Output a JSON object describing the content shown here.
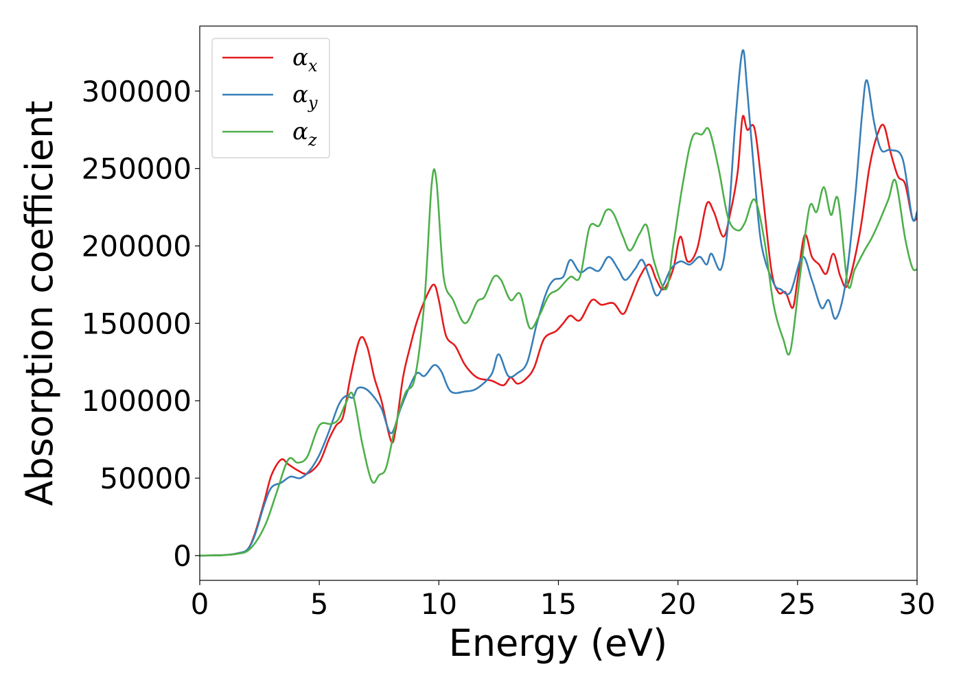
{
  "chart_data": {
    "type": "line",
    "title": "",
    "xlabel": "Energy (eV)",
    "ylabel": "Absorption coefficient",
    "xlim": [
      0,
      30
    ],
    "ylim": [
      -16000,
      342000
    ],
    "xticks": [
      0,
      5,
      10,
      15,
      20,
      25,
      30
    ],
    "xtick_labels": [
      "0",
      "5",
      "10",
      "15",
      "20",
      "25",
      "30"
    ],
    "yticks": [
      0,
      50000,
      100000,
      150000,
      200000,
      250000,
      300000
    ],
    "ytick_labels": [
      "0",
      "50000",
      "100000",
      "150000",
      "200000",
      "250000",
      "300000"
    ],
    "grid": false,
    "legend_position": "top-left",
    "series": [
      {
        "name": "αx",
        "symbol": "α",
        "subscript": "x",
        "color": "#e41a1c",
        "points": [
          [
            0,
            0
          ],
          [
            1,
            300
          ],
          [
            1.6,
            1500
          ],
          [
            2,
            4000
          ],
          [
            2.3,
            14000
          ],
          [
            2.7,
            35000
          ],
          [
            3,
            52000
          ],
          [
            3.4,
            62000
          ],
          [
            3.7,
            59000
          ],
          [
            4.1,
            55000
          ],
          [
            4.5,
            53000
          ],
          [
            5,
            60000
          ],
          [
            5.4,
            75000
          ],
          [
            5.7,
            84000
          ],
          [
            6,
            90000
          ],
          [
            6.3,
            115000
          ],
          [
            6.7,
            140000
          ],
          [
            7,
            135000
          ],
          [
            7.3,
            115000
          ],
          [
            7.6,
            100000
          ],
          [
            8,
            74000
          ],
          [
            8.2,
            82000
          ],
          [
            8.5,
            115000
          ],
          [
            8.8,
            135000
          ],
          [
            9.1,
            152000
          ],
          [
            9.5,
            168000
          ],
          [
            9.8,
            175000
          ],
          [
            10,
            165000
          ],
          [
            10.3,
            142000
          ],
          [
            10.7,
            135000
          ],
          [
            11.1,
            123000
          ],
          [
            11.6,
            115000
          ],
          [
            12.2,
            113000
          ],
          [
            12.7,
            110000
          ],
          [
            13,
            115000
          ],
          [
            13.3,
            111000
          ],
          [
            13.7,
            115000
          ],
          [
            14,
            122000
          ],
          [
            14.4,
            140000
          ],
          [
            14.9,
            145000
          ],
          [
            15.2,
            150000
          ],
          [
            15.5,
            155000
          ],
          [
            15.9,
            152000
          ],
          [
            16.4,
            165000
          ],
          [
            16.8,
            162000
          ],
          [
            17.3,
            163000
          ],
          [
            17.7,
            156000
          ],
          [
            18,
            165000
          ],
          [
            18.4,
            180000
          ],
          [
            18.8,
            188000
          ],
          [
            19.1,
            178000
          ],
          [
            19.4,
            172000
          ],
          [
            19.8,
            185000
          ],
          [
            20.1,
            206000
          ],
          [
            20.4,
            190000
          ],
          [
            20.8,
            198000
          ],
          [
            21.2,
            227000
          ],
          [
            21.5,
            222000
          ],
          [
            21.9,
            206000
          ],
          [
            22.2,
            222000
          ],
          [
            22.5,
            248000
          ],
          [
            22.7,
            283000
          ],
          [
            22.9,
            275000
          ],
          [
            23.2,
            276000
          ],
          [
            23.5,
            240000
          ],
          [
            23.9,
            185000
          ],
          [
            24.2,
            170000
          ],
          [
            24.5,
            170000
          ],
          [
            24.8,
            160000
          ],
          [
            25,
            178000
          ],
          [
            25.3,
            207000
          ],
          [
            25.6,
            193000
          ],
          [
            25.9,
            188000
          ],
          [
            26.2,
            182000
          ],
          [
            26.5,
            195000
          ],
          [
            26.8,
            180000
          ],
          [
            27.1,
            175000
          ],
          [
            27.6,
            208000
          ],
          [
            28,
            250000
          ],
          [
            28.3,
            270000
          ],
          [
            28.6,
            278000
          ],
          [
            28.9,
            260000
          ],
          [
            29.2,
            245000
          ],
          [
            29.5,
            240000
          ],
          [
            29.8,
            218000
          ],
          [
            30,
            218000
          ]
        ]
      },
      {
        "name": "αy",
        "symbol": "α",
        "subscript": "y",
        "color": "#377eb8",
        "points": [
          [
            0,
            0
          ],
          [
            1,
            300
          ],
          [
            1.6,
            1500
          ],
          [
            2,
            4000
          ],
          [
            2.3,
            13000
          ],
          [
            2.7,
            33000
          ],
          [
            3,
            44000
          ],
          [
            3.4,
            47000
          ],
          [
            3.8,
            51000
          ],
          [
            4.2,
            50000
          ],
          [
            4.6,
            55000
          ],
          [
            5,
            65000
          ],
          [
            5.4,
            80000
          ],
          [
            5.8,
            97000
          ],
          [
            6.1,
            103000
          ],
          [
            6.4,
            102000
          ],
          [
            6.6,
            108000
          ],
          [
            6.9,
            108000
          ],
          [
            7.2,
            104000
          ],
          [
            7.6,
            95000
          ],
          [
            8,
            79000
          ],
          [
            8.4,
            95000
          ],
          [
            8.8,
            110000
          ],
          [
            9.1,
            118000
          ],
          [
            9.4,
            116000
          ],
          [
            9.8,
            123000
          ],
          [
            10.1,
            119000
          ],
          [
            10.5,
            106000
          ],
          [
            11.1,
            106000
          ],
          [
            11.6,
            108000
          ],
          [
            12.2,
            117000
          ],
          [
            12.5,
            130000
          ],
          [
            12.9,
            116000
          ],
          [
            13.3,
            118000
          ],
          [
            13.7,
            125000
          ],
          [
            14.1,
            150000
          ],
          [
            14.5,
            170000
          ],
          [
            14.8,
            178000
          ],
          [
            15.2,
            180000
          ],
          [
            15.5,
            191000
          ],
          [
            15.9,
            183000
          ],
          [
            16.3,
            186000
          ],
          [
            16.7,
            184000
          ],
          [
            17.1,
            193000
          ],
          [
            17.5,
            185000
          ],
          [
            17.8,
            178000
          ],
          [
            18.2,
            185000
          ],
          [
            18.5,
            191000
          ],
          [
            18.8,
            180000
          ],
          [
            19.1,
            168000
          ],
          [
            19.4,
            175000
          ],
          [
            19.7,
            185000
          ],
          [
            20.1,
            190000
          ],
          [
            20.5,
            188000
          ],
          [
            20.9,
            193000
          ],
          [
            21.2,
            188000
          ],
          [
            21.4,
            195000
          ],
          [
            21.8,
            185000
          ],
          [
            22.1,
            215000
          ],
          [
            22.4,
            280000
          ],
          [
            22.7,
            326000
          ],
          [
            22.9,
            300000
          ],
          [
            23.2,
            245000
          ],
          [
            23.5,
            200000
          ],
          [
            24,
            176000
          ],
          [
            24.3,
            172000
          ],
          [
            24.7,
            170000
          ],
          [
            25.2,
            193000
          ],
          [
            25.6,
            178000
          ],
          [
            26,
            160000
          ],
          [
            26.3,
            165000
          ],
          [
            26.6,
            153000
          ],
          [
            27,
            175000
          ],
          [
            27.4,
            230000
          ],
          [
            27.7,
            285000
          ],
          [
            27.9,
            307000
          ],
          [
            28.2,
            280000
          ],
          [
            28.5,
            262000
          ],
          [
            28.9,
            262000
          ],
          [
            29.4,
            256000
          ],
          [
            29.8,
            218000
          ],
          [
            30,
            222000
          ]
        ]
      },
      {
        "name": "αz",
        "symbol": "α",
        "subscript": "z",
        "color": "#4daf4a",
        "points": [
          [
            0,
            0
          ],
          [
            1,
            300
          ],
          [
            1.6,
            1200
          ],
          [
            2,
            3000
          ],
          [
            2.4,
            10000
          ],
          [
            2.8,
            22000
          ],
          [
            3.2,
            40000
          ],
          [
            3.7,
            62000
          ],
          [
            4.1,
            60000
          ],
          [
            4.5,
            64000
          ],
          [
            5,
            84000
          ],
          [
            5.5,
            85000
          ],
          [
            5.8,
            88000
          ],
          [
            6.1,
            98000
          ],
          [
            6.4,
            104000
          ],
          [
            6.8,
            72000
          ],
          [
            7.2,
            48000
          ],
          [
            7.5,
            52000
          ],
          [
            7.8,
            57000
          ],
          [
            8.2,
            85000
          ],
          [
            8.6,
            105000
          ],
          [
            9,
            115000
          ],
          [
            9.4,
            165000
          ],
          [
            9.7,
            240000
          ],
          [
            9.9,
            242000
          ],
          [
            10.2,
            180000
          ],
          [
            10.6,
            165000
          ],
          [
            11.1,
            150000
          ],
          [
            11.6,
            164000
          ],
          [
            11.9,
            167000
          ],
          [
            12.3,
            180000
          ],
          [
            12.6,
            178000
          ],
          [
            13,
            165000
          ],
          [
            13.4,
            169000
          ],
          [
            13.8,
            147000
          ],
          [
            14.2,
            155000
          ],
          [
            14.6,
            168000
          ],
          [
            15,
            172000
          ],
          [
            15.5,
            180000
          ],
          [
            15.9,
            180000
          ],
          [
            16.3,
            212000
          ],
          [
            16.7,
            213000
          ],
          [
            17,
            223000
          ],
          [
            17.3,
            221000
          ],
          [
            17.7,
            206000
          ],
          [
            18,
            197000
          ],
          [
            18.4,
            208000
          ],
          [
            18.7,
            213000
          ],
          [
            19,
            190000
          ],
          [
            19.5,
            172000
          ],
          [
            19.8,
            200000
          ],
          [
            20.2,
            240000
          ],
          [
            20.6,
            270000
          ],
          [
            21,
            272000
          ],
          [
            21.3,
            275000
          ],
          [
            21.7,
            250000
          ],
          [
            22.1,
            218000
          ],
          [
            22.5,
            210000
          ],
          [
            22.8,
            215000
          ],
          [
            23.2,
            230000
          ],
          [
            23.6,
            205000
          ],
          [
            24,
            162000
          ],
          [
            24.4,
            140000
          ],
          [
            24.7,
            132000
          ],
          [
            25.1,
            180000
          ],
          [
            25.5,
            225000
          ],
          [
            25.8,
            222000
          ],
          [
            26.1,
            238000
          ],
          [
            26.4,
            220000
          ],
          [
            26.7,
            230000
          ],
          [
            27.1,
            175000
          ],
          [
            27.4,
            185000
          ],
          [
            27.8,
            197000
          ],
          [
            28.1,
            205000
          ],
          [
            28.4,
            215000
          ],
          [
            28.8,
            230000
          ],
          [
            29.1,
            242000
          ],
          [
            29.5,
            205000
          ],
          [
            29.8,
            186000
          ],
          [
            30,
            185000
          ]
        ]
      }
    ]
  }
}
